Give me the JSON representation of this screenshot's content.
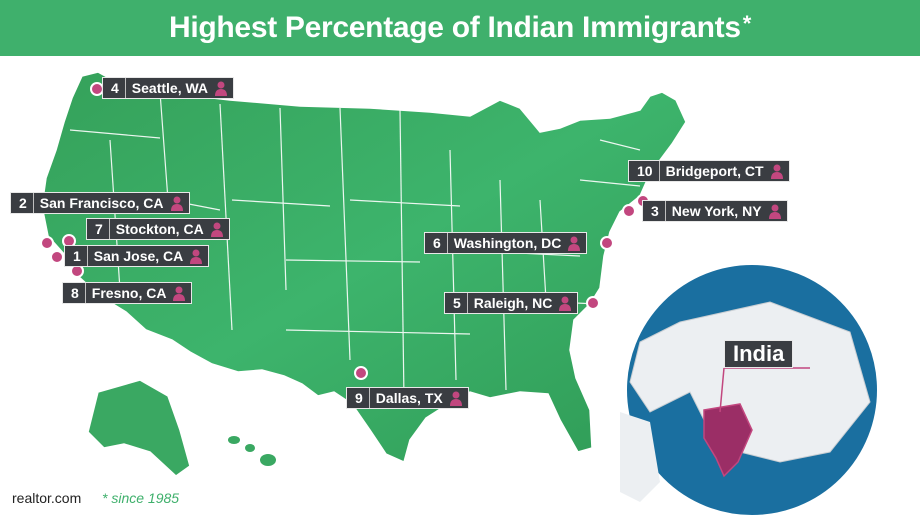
{
  "header": {
    "title": "Highest Percentage of Indian Immigrants",
    "asterisk": "*"
  },
  "cities": [
    {
      "rank": "4",
      "name": "Seattle, WA"
    },
    {
      "rank": "2",
      "name": "San Francisco, CA"
    },
    {
      "rank": "7",
      "name": "Stockton, CA"
    },
    {
      "rank": "1",
      "name": "San Jose, CA"
    },
    {
      "rank": "8",
      "name": "Fresno, CA"
    },
    {
      "rank": "10",
      "name": "Bridgeport, CT"
    },
    {
      "rank": "3",
      "name": "New York, NY"
    },
    {
      "rank": "6",
      "name": "Washington, DC"
    },
    {
      "rank": "5",
      "name": "Raleigh, NC"
    },
    {
      "rank": "9",
      "name": "Dallas, TX"
    }
  ],
  "globe": {
    "label": "India"
  },
  "footer": {
    "brand": "realtor.com",
    "note": "* since 1985"
  },
  "colors": {
    "header": "#3fb06c",
    "map": "#3aa862",
    "pin": "#c2477f",
    "label_bg": "#3a3d42",
    "ocean": "#1a6fa0"
  }
}
